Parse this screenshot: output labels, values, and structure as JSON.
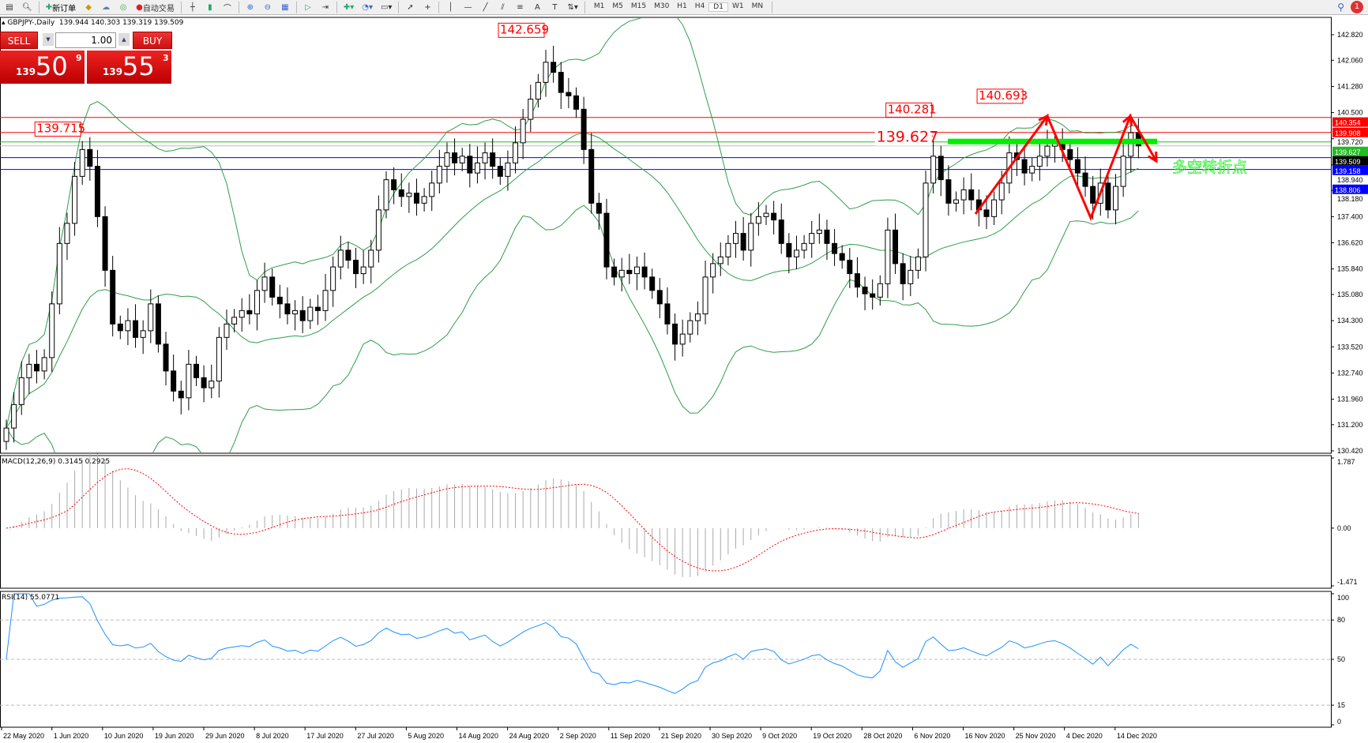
{
  "toolbar": {
    "new_order": "新订单",
    "auto_trading": "自动交易",
    "timeframes": [
      "M1",
      "M5",
      "M15",
      "M30",
      "H1",
      "H4",
      "D1",
      "W1",
      "MN"
    ],
    "active_timeframe": "D1",
    "notifications": "1"
  },
  "chart_header": {
    "symbol": "GBPJPY-,Daily",
    "ohlc": "139.944 140.303 139.319 139.509"
  },
  "trade_panel": {
    "sell_label": "SELL",
    "buy_label": "BUY",
    "lot": "1.00",
    "sell_prefix": "139",
    "sell_big": "50",
    "sell_sup": "9",
    "buy_prefix": "139",
    "buy_big": "55",
    "buy_sup": "3"
  },
  "macd": {
    "label": "MACD(12,26,9) 0.3145 0.2925",
    "ticks": [
      "1.787",
      "0.00",
      "-1.471"
    ]
  },
  "rsi": {
    "label": "RSI(14) 55.0771",
    "ticks": [
      "100",
      "80",
      "50",
      "15",
      "0"
    ]
  },
  "annotation_text": "多空转折点",
  "colors": {
    "bull": "#ffffff",
    "bear": "#000000",
    "bands": "#2e9e4a",
    "macd_signal": "#ff0000",
    "rsi": "#1e90ff",
    "annotation": "#33ee33",
    "zigzag": "#ff0000"
  },
  "chart_data": {
    "type": "candlestick",
    "symbol": "GBPJPY",
    "timeframe": "Daily",
    "ylim": [
      130.42,
      142.82
    ],
    "price_ticks": [
      "142.820",
      "142.060",
      "141.280",
      "140.500",
      "139.720",
      "138.940",
      "138.180",
      "137.400",
      "136.620",
      "135.840",
      "135.080",
      "134.300",
      "133.520",
      "132.740",
      "131.960",
      "131.200",
      "130.420"
    ],
    "date_ticks": [
      "22 May 2020",
      "1 Jun 2020",
      "10 Jun 2020",
      "19 Jun 2020",
      "29 Jun 2020",
      "8 Jul 2020",
      "17 Jul 2020",
      "27 Jul 2020",
      "5 Aug 2020",
      "14 Aug 2020",
      "24 Aug 2020",
      "2 Sep 2020",
      "11 Sep 2020",
      "21 Sep 2020",
      "30 Sep 2020",
      "9 Oct 2020",
      "19 Oct 2020",
      "28 Oct 2020",
      "6 Nov 2020",
      "16 Nov 2020",
      "25 Nov 2020",
      "4 Dec 2020",
      "14 Dec 2020"
    ],
    "closes": [
      131.1,
      131.8,
      132.6,
      133.0,
      132.8,
      133.2,
      134.8,
      136.6,
      137.2,
      138.6,
      139.4,
      138.9,
      137.4,
      135.8,
      134.2,
      134.0,
      134.3,
      133.8,
      134.0,
      134.8,
      133.6,
      132.8,
      132.2,
      132.0,
      133.0,
      132.6,
      132.3,
      132.5,
      133.8,
      134.2,
      134.4,
      134.6,
      134.5,
      135.2,
      135.6,
      135.0,
      134.8,
      134.5,
      134.6,
      134.3,
      134.7,
      134.6,
      135.2,
      135.9,
      136.4,
      136.1,
      135.7,
      135.9,
      136.4,
      137.6,
      138.5,
      138.2,
      138.0,
      138.1,
      137.8,
      138.0,
      138.4,
      138.9,
      139.3,
      139.0,
      139.2,
      138.7,
      139.0,
      139.3,
      138.9,
      138.6,
      139.0,
      139.6,
      140.3,
      140.9,
      141.4,
      142.0,
      141.7,
      141.1,
      141.0,
      140.6,
      139.4,
      137.8,
      137.5,
      135.9,
      135.6,
      135.8,
      135.7,
      135.9,
      135.6,
      135.2,
      134.8,
      134.2,
      133.6,
      133.9,
      134.3,
      134.5,
      135.6,
      136.0,
      136.2,
      136.6,
      136.9,
      136.4,
      137.2,
      137.4,
      137.5,
      137.3,
      136.6,
      136.2,
      136.4,
      136.6,
      136.9,
      137.0,
      136.6,
      136.3,
      136.1,
      135.7,
      135.3,
      135.1,
      135.0,
      135.4,
      137.0,
      136.0,
      135.4,
      135.8,
      136.2,
      138.4,
      139.2,
      138.5,
      137.8,
      137.9,
      138.2,
      137.9,
      137.6,
      137.4,
      137.9,
      138.4,
      139.3,
      139.1,
      138.7,
      138.9,
      139.2,
      139.5,
      139.6,
      139.4,
      139.1,
      138.7,
      138.3,
      137.8,
      138.4,
      137.6,
      138.3,
      139.2,
      139.9,
      139.509
    ],
    "horizontal_lines": [
      {
        "price": "140.354",
        "color": "#ff0000"
      },
      {
        "price": "139.908",
        "color": "#ff0000"
      },
      {
        "price": "139.627",
        "color": "#22bb22"
      },
      {
        "price": "139.509",
        "color": "#000000"
      },
      {
        "price": "139.158",
        "color": "#0000ff"
      },
      {
        "price": "138.806",
        "color": "#0000ff"
      }
    ],
    "price_labels": [
      {
        "text": "142.659",
        "index": 71
      },
      {
        "text": "139.715",
        "index": 10,
        "left": true
      },
      {
        "text": "140.281",
        "index": 122
      },
      {
        "text": "140.693",
        "index": 134
      },
      {
        "text": "139.627",
        "index": 122,
        "big": true
      }
    ],
    "indicators": [
      "Bollinger Bands",
      "MACD(12,26,9)",
      "RSI(14)"
    ]
  }
}
